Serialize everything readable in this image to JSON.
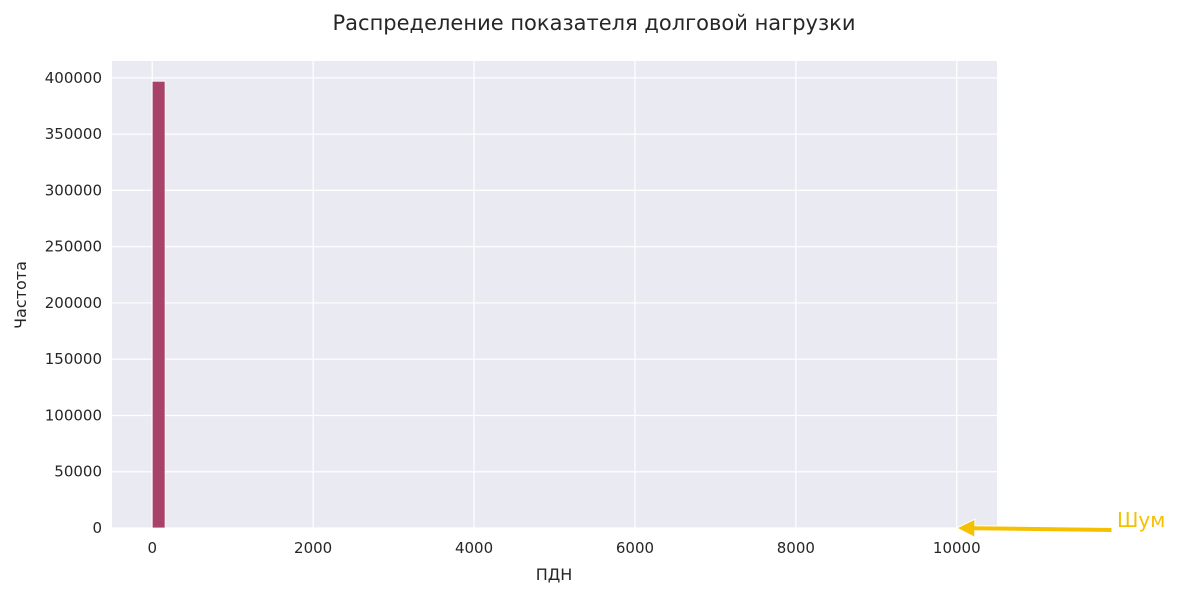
{
  "chart_data": {
    "type": "bar",
    "title": "Распределение показателя долговой нагрузки",
    "xlabel": "ПДН",
    "ylabel": "Частота",
    "xlim": [
      -500,
      10500
    ],
    "ylim": [
      0,
      415000
    ],
    "x_ticks": [
      0,
      2000,
      4000,
      6000,
      8000,
      10000
    ],
    "y_ticks": [
      0,
      50000,
      100000,
      150000,
      200000,
      250000,
      300000,
      350000,
      400000
    ],
    "grid": true,
    "legend": "none",
    "bars": [
      {
        "x_start": 0,
        "x_end": 160,
        "count": 397000
      }
    ],
    "bar_color": "#a0305a",
    "background_color": "#eaeaf2",
    "annotation": {
      "text": "Шум",
      "target_x": 10000,
      "target_y": 0,
      "color": "#f5c000"
    }
  }
}
